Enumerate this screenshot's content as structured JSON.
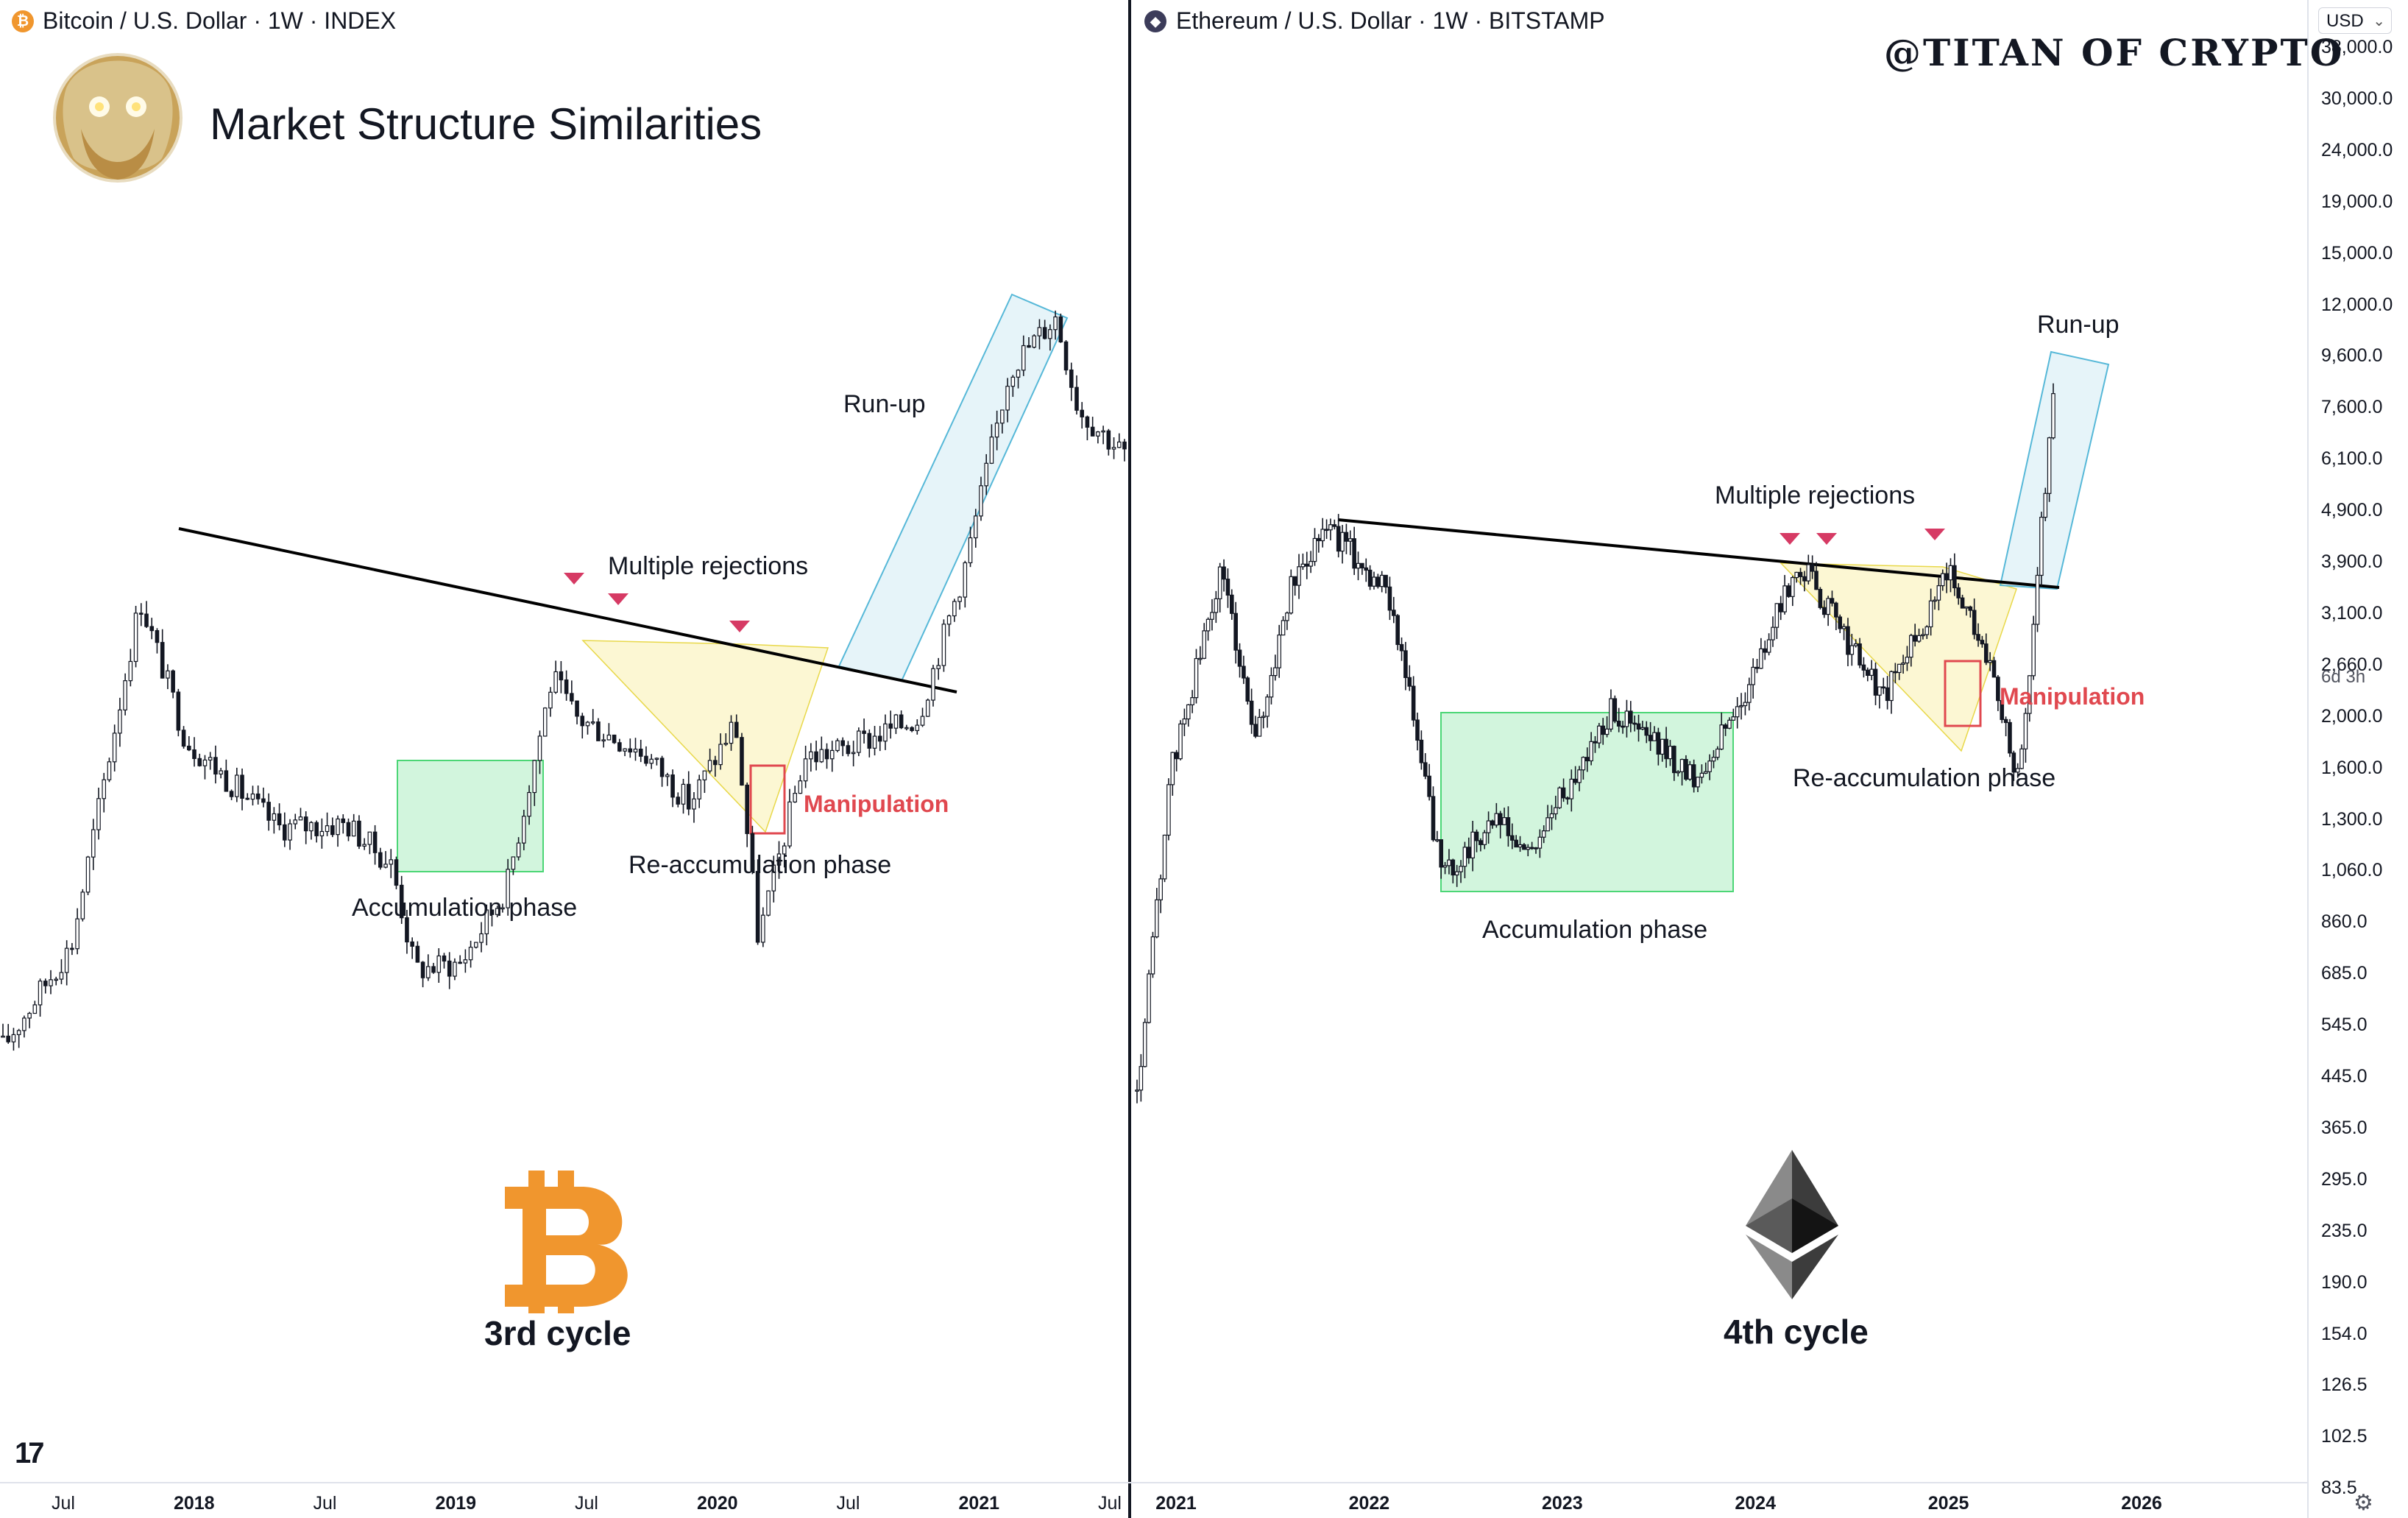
{
  "page_title": "Market Structure Similarities",
  "watermark": "@TITAN OF CRYPTO",
  "currency": "USD",
  "countdown": "6d 3h",
  "colors": {
    "accumulation": "#4cd676",
    "reaccumulation": "#f5e66e",
    "runup": "#56b8d8",
    "manipulation": "#e0484f",
    "rejection_marker": "#d63a64",
    "btc_orange": "#f0962e"
  },
  "left_panel": {
    "title": "Bitcoin / U.S. Dollar · 1W · INDEX",
    "symbol_icon": "bitcoin-icon",
    "cycle_label": "3rd cycle",
    "labels": {
      "runup": "Run-up",
      "rejections": "Multiple rejections",
      "manipulation": "Manipulation",
      "reaccumulation": "Re-accumulation phase",
      "accumulation": "Accumulation phase"
    },
    "x_ticks": [
      {
        "label": "Jul",
        "bold": false
      },
      {
        "label": "2018",
        "bold": true
      },
      {
        "label": "Jul",
        "bold": false
      },
      {
        "label": "2019",
        "bold": true
      },
      {
        "label": "Jul",
        "bold": false
      },
      {
        "label": "2020",
        "bold": true
      },
      {
        "label": "Jul",
        "bold": false
      },
      {
        "label": "2021",
        "bold": true
      },
      {
        "label": "Jul",
        "bold": false
      }
    ]
  },
  "right_panel": {
    "title": "Ethereum / U.S. Dollar · 1W · BITSTAMP",
    "symbol_icon": "ethereum-icon",
    "cycle_label": "4th cycle",
    "labels": {
      "runup": "Run-up",
      "rejections": "Multiple rejections",
      "manipulation": "Manipulation",
      "reaccumulation": "Re-accumulation phase",
      "accumulation": "Accumulation phase"
    },
    "x_ticks": [
      {
        "label": "2021",
        "bold": true
      },
      {
        "label": "2022",
        "bold": true
      },
      {
        "label": "2023",
        "bold": true
      },
      {
        "label": "2024",
        "bold": true
      },
      {
        "label": "2025",
        "bold": true
      },
      {
        "label": "2026",
        "bold": true
      }
    ]
  },
  "chart_data": [
    {
      "type": "line",
      "title": "Bitcoin / U.S. Dollar · 1W · INDEX",
      "series": [
        {
          "name": "",
          "x": [
            "2017-06",
            "2017-09",
            "2017-12",
            "2018-02",
            "2018-06",
            "2018-09",
            "2018-11",
            "2018-12",
            "2019-02",
            "2019-04",
            "2019-06",
            "2019-07",
            "2019-10",
            "2019-12",
            "2020-02",
            "2020-03",
            "2020-05",
            "2020-07",
            "2020-10",
            "2020-12",
            "2021-02",
            "2021-04",
            "2021-05",
            "2021-07"
          ],
          "y": [
            2500,
            3900,
            17500,
            9500,
            6500,
            6600,
            5500,
            3500,
            3600,
            5000,
            12500,
            10500,
            9000,
            7200,
            10300,
            4000,
            8800,
            9200,
            10500,
            20000,
            48000,
            60000,
            40000,
            33000
          ]
        }
      ]
    },
    {
      "type": "line",
      "title": "Ethereum / U.S. Dollar · 1W · BITSTAMP",
      "y_axis_labels": [
        "38,000.0",
        "30,000.0",
        "24,000.0",
        "19,000.0",
        "15,000.0",
        "12,000.0",
        "9,600.0",
        "7,600.0",
        "6,100.0",
        "4,900.0",
        "3,900.0",
        "3,100.0",
        "2,660.0",
        "2,000.0",
        "1,600.0",
        "1,300.0",
        "1,060.0",
        "860.0",
        "685.0",
        "545.0",
        "445.0",
        "365.0",
        "295.0",
        "235.0",
        "190.0",
        "154.0",
        "126.5",
        "102.5",
        "83.5"
      ],
      "y_scale": "log",
      "series": [
        {
          "name": "",
          "x": [
            "2020-12",
            "2021-02",
            "2021-05",
            "2021-07",
            "2021-09",
            "2021-11",
            "2022-03",
            "2022-06",
            "2022-09",
            "2022-11",
            "2023-04",
            "2023-09",
            "2023-12",
            "2024-03",
            "2024-08",
            "2024-12",
            "2025-02",
            "2025-04",
            "2025-06"
          ],
          "y": [
            380,
            1600,
            3900,
            1800,
            3500,
            4800,
            3400,
            1000,
            1300,
            1100,
            2100,
            1550,
            2300,
            4000,
            2200,
            3900,
            2700,
            1500,
            8500
          ]
        }
      ]
    }
  ]
}
